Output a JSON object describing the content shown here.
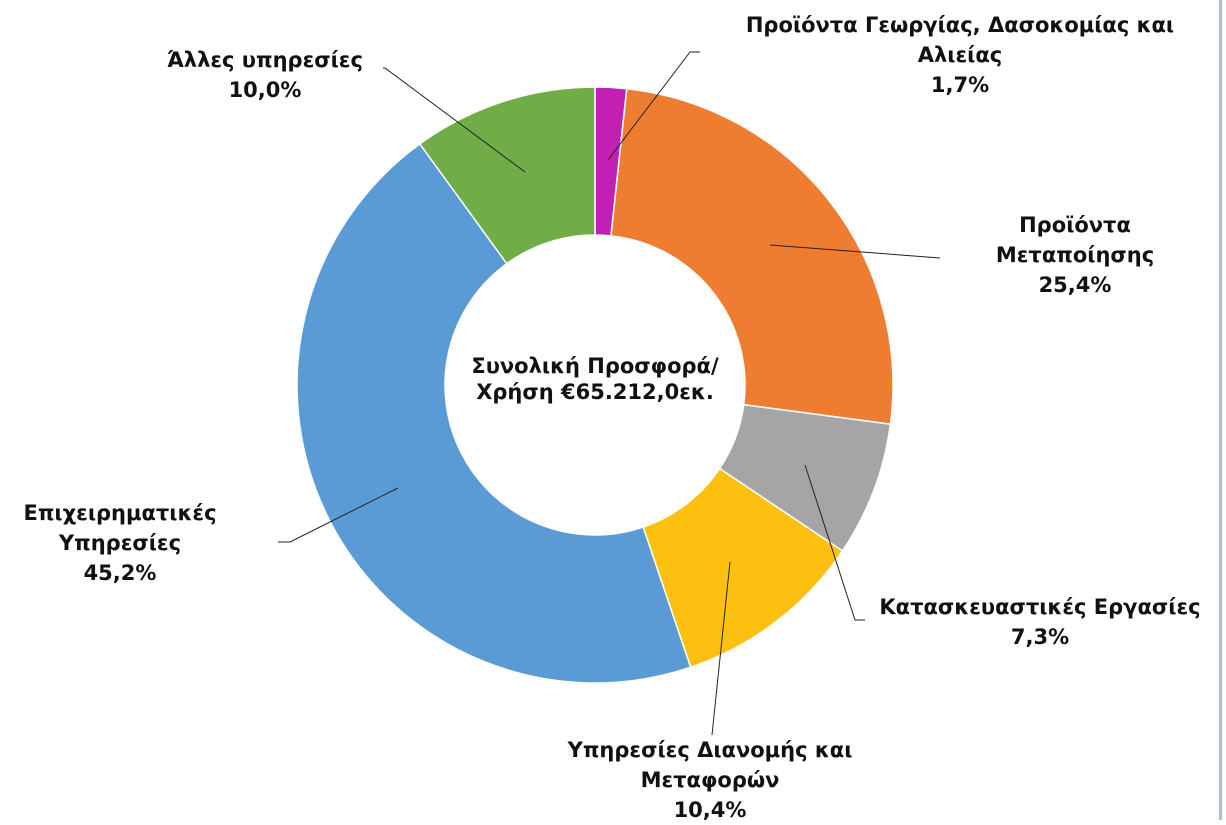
{
  "chart_data": {
    "type": "donut",
    "center_label": "Συνολική Προσφορά/ Χρήση €65.212,0εκ.",
    "categories": [
      "Προϊόντα Γεωργίας, Δασοκομίας και Αλιείας",
      "Προϊόντα Μεταποίησης",
      "Κατασκευαστικές Εργασίες",
      "Υπηρεσίες Διανομής και Μεταφορών",
      "Επιχειρηματικές Υπηρεσίες",
      "Άλλες υπηρεσίες"
    ],
    "values": [
      1.7,
      25.4,
      7.3,
      10.4,
      45.2,
      10.0
    ],
    "value_labels": [
      "1,7%",
      "25,4%",
      "7,3%",
      "10,4%",
      "45,2%",
      "10,0%"
    ],
    "colors": [
      "#c21fb3",
      "#ef7d31",
      "#a5a5a5",
      "#fdc010",
      "#5b9bd5",
      "#70ad47"
    ]
  }
}
